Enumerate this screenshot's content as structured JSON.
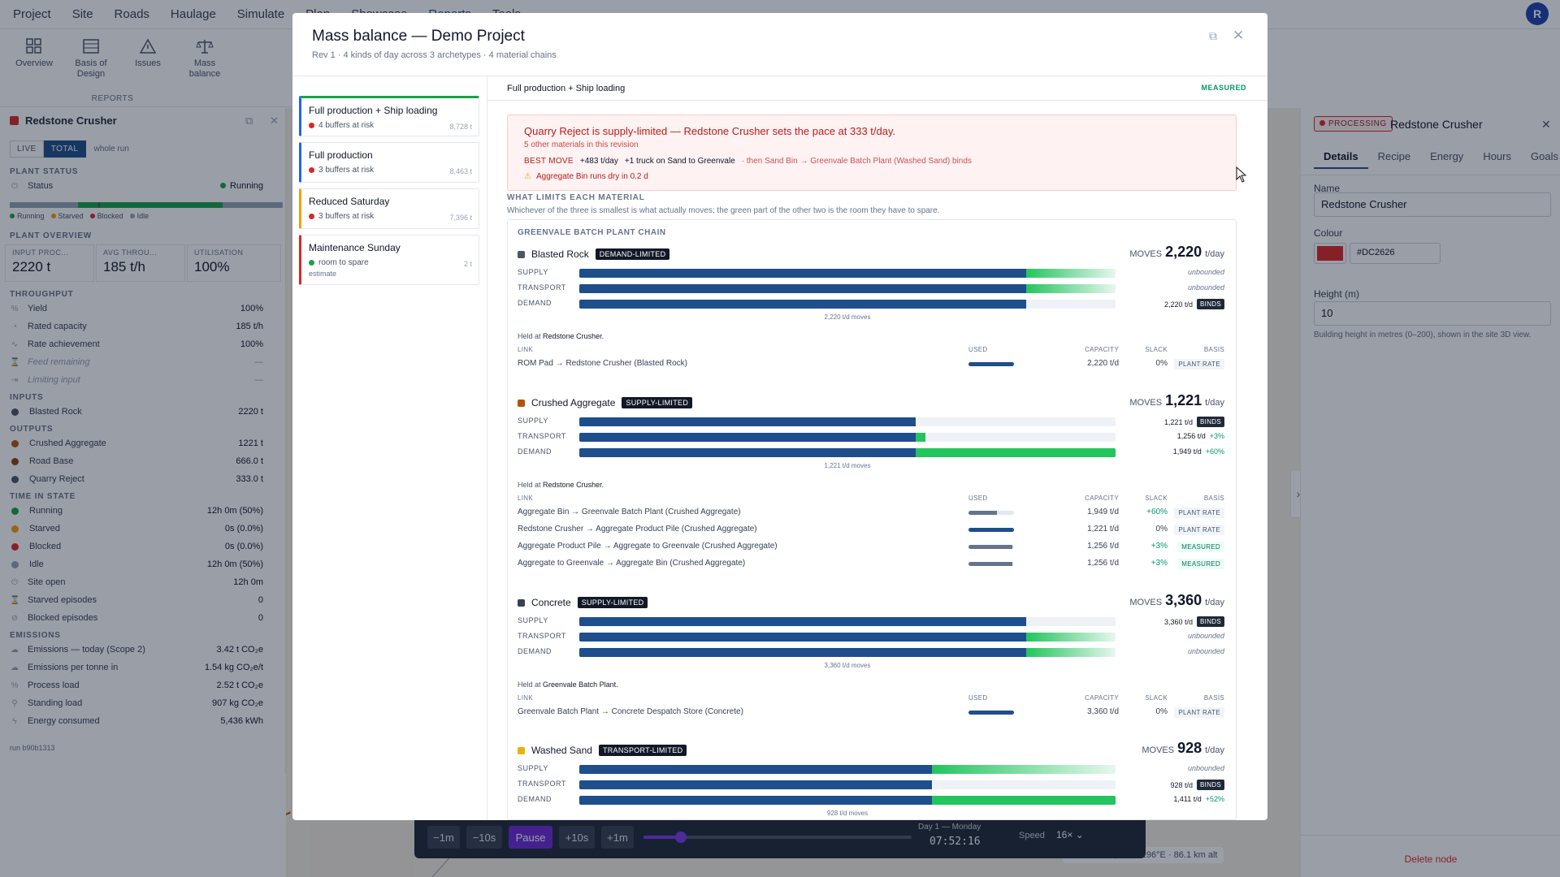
{
  "menu": {
    "items": [
      "Project",
      "Site",
      "Roads",
      "Haulage",
      "Simulate",
      "Plan",
      "Showcase",
      "Reports",
      "Tools"
    ],
    "avatar": "R"
  },
  "ribbon": {
    "buttons": [
      "Overview",
      "Basis of Design",
      "Issues",
      "Mass balance"
    ],
    "caption": "REPORTS"
  },
  "left_panel": {
    "title": "Redstone Crusher",
    "accent": "#DC2626",
    "seg": [
      "LIVE",
      "TOTAL"
    ],
    "seg_note": "whole run",
    "plant_status_label": "PLANT STATUS",
    "status_label": "Status",
    "status_value": "Running",
    "legend": [
      "Running",
      "Starved",
      "Blocked",
      "Idle"
    ],
    "overview_label": "PLANT OVERVIEW",
    "overview": [
      {
        "t": "INPUT PROC...",
        "v": "2220 t"
      },
      {
        "t": "AVG THROU...",
        "v": "185 t/h"
      },
      {
        "t": "UTILISATION",
        "v": "100%"
      }
    ],
    "throughput_label": "THROUGHPUT",
    "throughput": [
      {
        "l": "Yield",
        "v": "100%"
      },
      {
        "l": "Rated capacity",
        "v": "185 t/h"
      },
      {
        "l": "Rate achievement",
        "v": "100%"
      },
      {
        "l": "Feed remaining",
        "v": "—"
      },
      {
        "l": "Limiting input",
        "v": "—"
      }
    ],
    "inputs_label": "INPUTS",
    "inputs": [
      {
        "l": "Blasted Rock",
        "v": "2220 t",
        "c": "#4b5563"
      }
    ],
    "outputs_label": "OUTPUTS",
    "outputs": [
      {
        "l": "Crushed Aggregate",
        "v": "1221 t",
        "c": "#b45309"
      },
      {
        "l": "Road Base",
        "v": "666.0 t",
        "c": "#92400e"
      },
      {
        "l": "Quarry Reject",
        "v": "333.0 t",
        "c": "#4b5563"
      }
    ],
    "time_label": "TIME IN STATE",
    "time": [
      {
        "l": "Running",
        "v": "12h 0m (50%)",
        "c": "#16a34a"
      },
      {
        "l": "Starved",
        "v": "0s (0.0%)",
        "c": "#f59e0b"
      },
      {
        "l": "Blocked",
        "v": "0s (0.0%)",
        "c": "#dc2626"
      },
      {
        "l": "Idle",
        "v": "12h 0m (50%)",
        "c": "#94a3b8"
      },
      {
        "l": "Site open",
        "v": "12h 0m"
      },
      {
        "l": "Starved episodes",
        "v": "0"
      },
      {
        "l": "Blocked episodes",
        "v": "0"
      }
    ],
    "emissions_label": "EMISSIONS",
    "emissions": [
      {
        "l": "Emissions — today (Scope 2)",
        "v": "3.42 t CO₂e"
      },
      {
        "l": "Emissions per tonne in",
        "v": "1.54 kg CO₂e/t"
      },
      {
        "l": "Process load",
        "v": "2.52 t CO₂e"
      },
      {
        "l": "Standing load",
        "v": "907 kg CO₂e"
      },
      {
        "l": "Energy consumed",
        "v": "5,436 kWh"
      }
    ],
    "run_id": "run b90b1313"
  },
  "right_panel": {
    "badge": "PROCESSING",
    "title": "Redstone Crusher",
    "tabs": [
      "Details",
      "Recipe",
      "Energy",
      "Hours",
      "Goals"
    ],
    "name_label": "Name",
    "name_value": "Redstone Crusher",
    "colour_label": "Colour",
    "colour_value": "#DC2626",
    "height_label": "Height (m)",
    "height_value": "10",
    "height_help": "Building height in metres (0–200), shown in the site 3D view.",
    "delete_label": "Delete node",
    "coords": "-27.5236°S, 153.2196°E · 86.1 km alt"
  },
  "player": {
    "buttons": [
      "−1m",
      "−10s",
      "Pause",
      "+10s",
      "+1m"
    ],
    "progress": 0.14,
    "day": "Day 1 — Monday",
    "time": "07:52:16",
    "speed_label": "Speed",
    "speed_value": "16×"
  },
  "modal": {
    "title": "Mass balance — Demo Project",
    "subtitle": "Rev 1 · 4 kinds of day across 3 archetypes · 4 material chains",
    "scenarios": [
      {
        "t": "Full production + Ship loading",
        "s": "4 buffers at risk",
        "n": "8,728 t",
        "border": "#2563eb",
        "dot": "#dc2626",
        "top": "#16a34a"
      },
      {
        "t": "Full production",
        "s": "3 buffers at risk",
        "n": "8,463 t",
        "border": "#2563eb",
        "dot": "#dc2626"
      },
      {
        "t": "Reduced Saturday",
        "s": "3 buffers at risk",
        "n": "7,396 t",
        "border": "#f59e0b",
        "dot": "#dc2626"
      },
      {
        "t": "Maintenance Sunday",
        "s": "room to spare",
        "n": "2 t",
        "border": "#dc2626",
        "dot": "#16a34a",
        "extra": "estimate"
      }
    ],
    "header": {
      "scenario": "Full production + Ship loading",
      "badge": "MEASURED"
    },
    "alert": {
      "title": "Quarry Reject is supply-limited — Redstone Crusher sets the pace at 333 t/day.",
      "sub": "5 other materials in this revision",
      "best_label": "BEST MOVE",
      "best_gain": "+483 t/day",
      "best_action": "+1 truck on Sand to Greenvale",
      "best_then": "· then Sand Bin → Greenvale Batch Plant (Washed Sand) binds",
      "warning": "Aggregate Bin runs dry in 0.2 d"
    },
    "limits_title": "WHAT LIMITS EACH MATERIAL",
    "limits_sub": "Whichever of the three is smallest is what actually moves; the green part of the other two is the room they have to spare.",
    "chain_title": "GREENVALE BATCH PLANT CHAIN",
    "moves_label": "MOVES",
    "unit": "t/day",
    "rows": [
      "SUPPLY",
      "TRANSPORT",
      "DEMAND"
    ],
    "held_prefix": "Held at",
    "link_headers": [
      "LINK",
      "USED",
      "CAPACITY",
      "SLACK",
      "BASIS"
    ],
    "binds": "BINDS",
    "materials": [
      {
        "name": "Blasted Rock",
        "color": "#4b5563",
        "tag": "DEMAND-LIMITED",
        "moves": "2,220",
        "caption": "2,220 t/d moves",
        "rows": [
          {
            "val": "unbounded",
            "un": true,
            "fill": 0.833,
            "spare": 0.167,
            "grad": true
          },
          {
            "val": "unbounded",
            "un": true,
            "fill": 0.833,
            "spare": 0.167,
            "grad": true
          },
          {
            "val": "2,220 t/d",
            "binds": true,
            "fill": 0.833,
            "spare": 0
          }
        ],
        "held": "Redstone Crusher.",
        "links": [
          {
            "l": "ROM Pad → Redstone Crusher (Blasted Rock)",
            "u": 1.0,
            "c": "2,220 t/d",
            "s": "0%",
            "b": "PLANT RATE"
          }
        ]
      },
      {
        "name": "Crushed Aggregate",
        "color": "#b45309",
        "tag": "SUPPLY-LIMITED",
        "moves": "1,221",
        "caption": "1,221 t/d moves",
        "rows": [
          {
            "val": "1,221 t/d",
            "binds": true,
            "fill": 0.627,
            "spare": 0
          },
          {
            "val": "1,256 t/d",
            "pct": "+3%",
            "fill": 0.627,
            "spare": 0.018
          },
          {
            "val": "1,949 t/d",
            "pct": "+60%",
            "fill": 0.627,
            "spare": 0.373
          }
        ],
        "held": "Redstone Crusher.",
        "links": [
          {
            "l": "Aggregate Bin → Greenvale Batch Plant (Crushed Aggregate)",
            "u": 0.63,
            "c": "1,949 t/d",
            "s": "+60%",
            "b": "PLANT RATE"
          },
          {
            "l": "Redstone Crusher → Aggregate Product Pile (Crushed Aggregate)",
            "u": 1.0,
            "c": "1,221 t/d",
            "s": "0%",
            "b": "PLANT RATE"
          },
          {
            "l": "Aggregate Product Pile → Aggregate to Greenvale (Crushed Aggregate)",
            "u": 0.97,
            "c": "1,256 t/d",
            "s": "+3%",
            "b": "MEASURED"
          },
          {
            "l": "Aggregate to Greenvale → Aggregate Bin (Crushed Aggregate)",
            "u": 0.97,
            "c": "1,256 t/d",
            "s": "+3%",
            "b": "MEASURED"
          }
        ]
      },
      {
        "name": "Concrete",
        "color": "#374151",
        "tag": "SUPPLY-LIMITED",
        "moves": "3,360",
        "caption": "3,360 t/d moves",
        "rows": [
          {
            "val": "3,360 t/d",
            "binds": true,
            "fill": 0.833,
            "spare": 0
          },
          {
            "val": "unbounded",
            "un": true,
            "fill": 0.833,
            "spare": 0.167,
            "grad": true
          },
          {
            "val": "unbounded",
            "un": true,
            "fill": 0.833,
            "spare": 0.167,
            "grad": true
          }
        ],
        "held": "Greenvale Batch Plant.",
        "links": [
          {
            "l": "Greenvale Batch Plant → Concrete Despatch Store (Concrete)",
            "u": 1.0,
            "c": "3,360 t/d",
            "s": "0%",
            "b": "PLANT RATE"
          }
        ]
      },
      {
        "name": "Washed Sand",
        "color": "#eab308",
        "tag": "TRANSPORT-LIMITED",
        "moves": "928",
        "caption": "928 t/d moves",
        "rows": [
          {
            "val": "unbounded",
            "un": true,
            "fill": 0.658,
            "spare": 0.342,
            "grad": true
          },
          {
            "val": "928 t/d",
            "binds": true,
            "fill": 0.658,
            "spare": 0
          },
          {
            "val": "1,411 t/d",
            "pct": "+52%",
            "fill": 0.658,
            "spare": 0.342
          }
        ],
        "held": "",
        "links": []
      }
    ]
  }
}
